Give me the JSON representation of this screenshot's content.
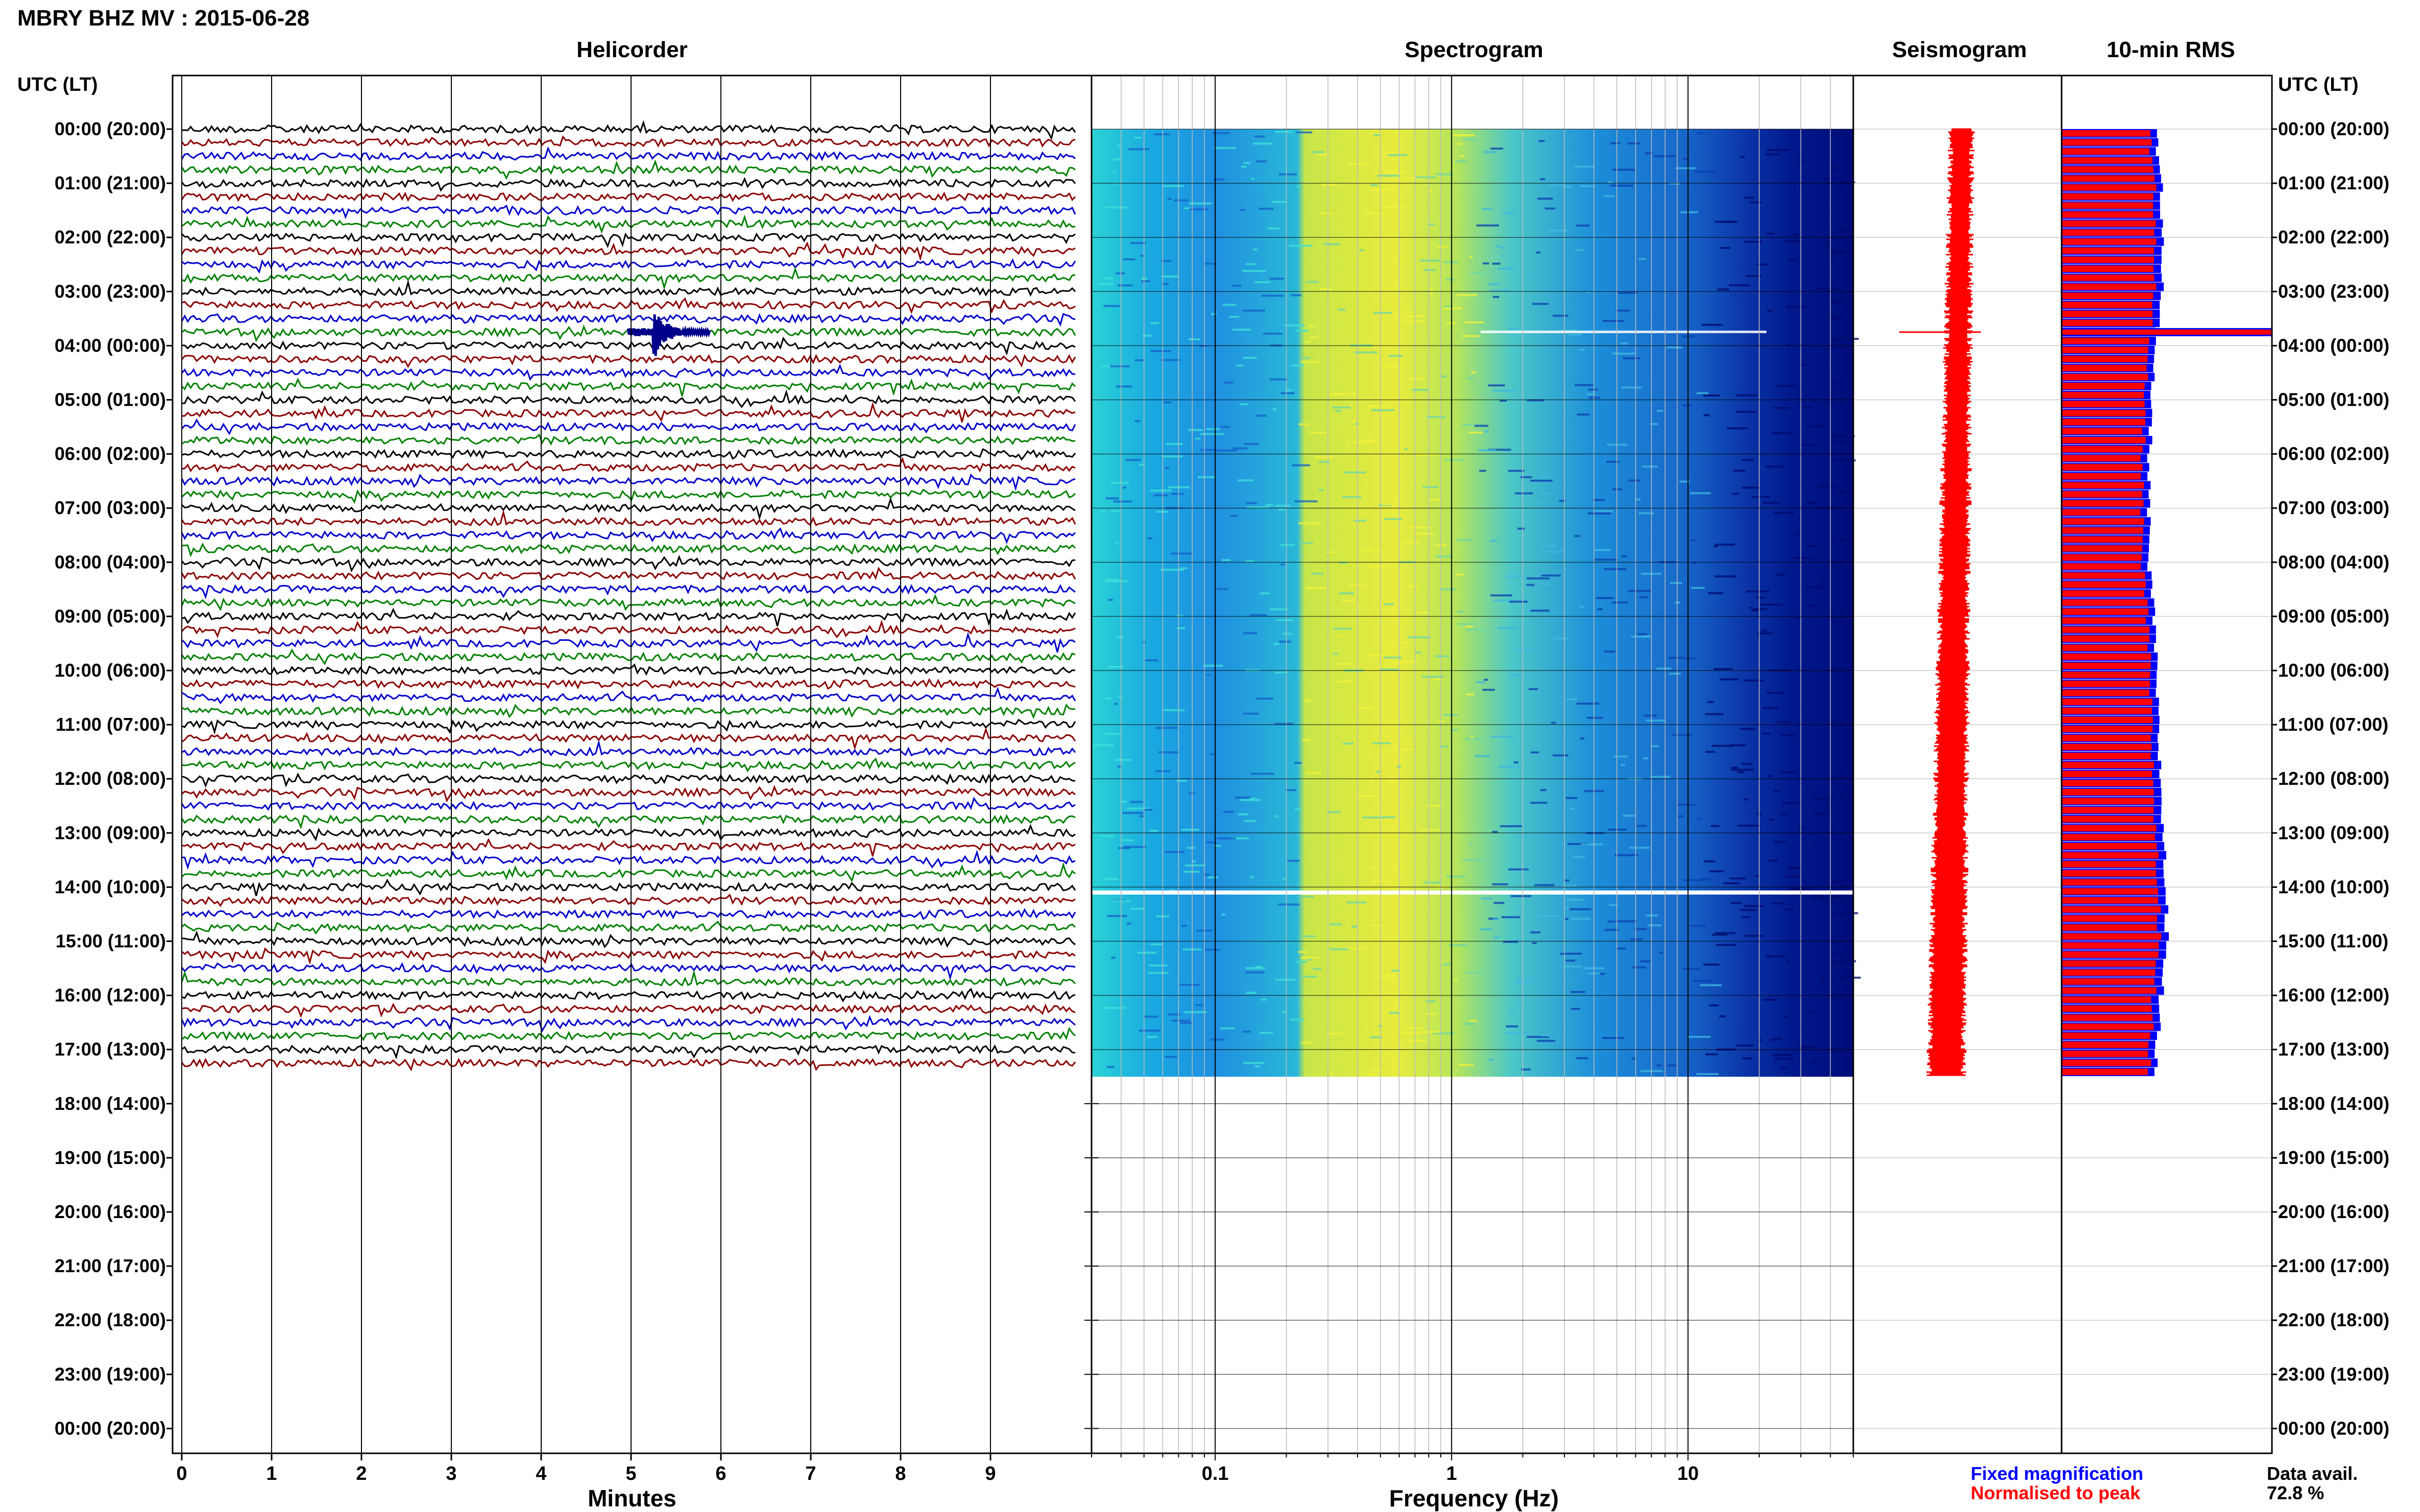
{
  "header": {
    "station_title": "MBRY BHZ MV : 2015-06-28",
    "utc_label_left": "UTC (LT)",
    "utc_label_right": "UTC (LT)"
  },
  "panels": {
    "helicorder_title": "Helicorder",
    "spectrogram_title": "Spectrogram",
    "seismogram_title": "Seismogram",
    "rms_title": "10-min RMS"
  },
  "axes": {
    "minutes_label": "Minutes",
    "frequency_label": "Frequency (Hz)",
    "minute_ticks": [
      "0",
      "1",
      "2",
      "3",
      "4",
      "5",
      "6",
      "7",
      "8",
      "9"
    ],
    "frequency_ticks": [
      {
        "label": "0.1",
        "value": 0.1
      },
      {
        "label": "1",
        "value": 1
      },
      {
        "label": "10",
        "value": 10
      }
    ]
  },
  "time_labels": [
    "00:00 (20:00)",
    "01:00 (21:00)",
    "02:00 (22:00)",
    "03:00 (23:00)",
    "04:00 (00:00)",
    "05:00 (01:00)",
    "06:00 (02:00)",
    "07:00 (03:00)",
    "08:00 (04:00)",
    "09:00 (05:00)",
    "10:00 (06:00)",
    "11:00 (07:00)",
    "12:00 (08:00)",
    "13:00 (09:00)",
    "14:00 (10:00)",
    "15:00 (11:00)",
    "16:00 (12:00)",
    "17:00 (13:00)",
    "18:00 (14:00)",
    "19:00 (15:00)",
    "20:00 (16:00)",
    "21:00 (17:00)",
    "22:00 (18:00)",
    "23:00 (19:00)",
    "00:00 (20:00)"
  ],
  "legend": {
    "fixed_label": "Fixed magnification",
    "fixed_color": "#0000ff",
    "normalised_label": "Normalised to peak",
    "normalised_color": "#ff0000",
    "avail_label": "Data avail.",
    "avail_value": "72.8 %"
  },
  "colors": {
    "trace_colors": [
      "#000000",
      "#8b0000",
      "#0000cd",
      "#008000"
    ],
    "event_color": "#00008b"
  },
  "chart_data": {
    "type": "line",
    "data_end_hour": 17.5,
    "event": {
      "hour": 3.75,
      "minute": 5.4
    },
    "rms_hourly": [
      {
        "hour": 0,
        "fixed": 1.0,
        "normalised": 0.93
      },
      {
        "hour": 1,
        "fixed": 1.05,
        "normalised": 0.98
      },
      {
        "hour": 2,
        "fixed": 1.08,
        "normalised": 1.0
      },
      {
        "hour": 3,
        "fixed": 1.06,
        "normalised": 0.98
      },
      {
        "hour": 3.75,
        "fixed": 2.4,
        "normalised": 2.4
      },
      {
        "hour": 4,
        "fixed": 0.97,
        "normalised": 0.9
      },
      {
        "hour": 5,
        "fixed": 0.95,
        "normalised": 0.88
      },
      {
        "hour": 6,
        "fixed": 0.93,
        "normalised": 0.86
      },
      {
        "hour": 7,
        "fixed": 0.92,
        "normalised": 0.85
      },
      {
        "hour": 8,
        "fixed": 0.92,
        "normalised": 0.85
      },
      {
        "hour": 9,
        "fixed": 0.98,
        "normalised": 0.91
      },
      {
        "hour": 10,
        "fixed": 1.0,
        "normalised": 0.93
      },
      {
        "hour": 11,
        "fixed": 1.02,
        "normalised": 0.95
      },
      {
        "hour": 12,
        "fixed": 1.05,
        "normalised": 0.97
      },
      {
        "hour": 13,
        "fixed": 1.08,
        "normalised": 1.0
      },
      {
        "hour": 14,
        "fixed": 1.1,
        "normalised": 1.02
      },
      {
        "hour": 15,
        "fixed": 1.12,
        "normalised": 1.04
      },
      {
        "hour": 16,
        "fixed": 1.05,
        "normalised": 0.97
      },
      {
        "hour": 17,
        "fixed": 1.0,
        "normalised": 0.93
      }
    ]
  }
}
